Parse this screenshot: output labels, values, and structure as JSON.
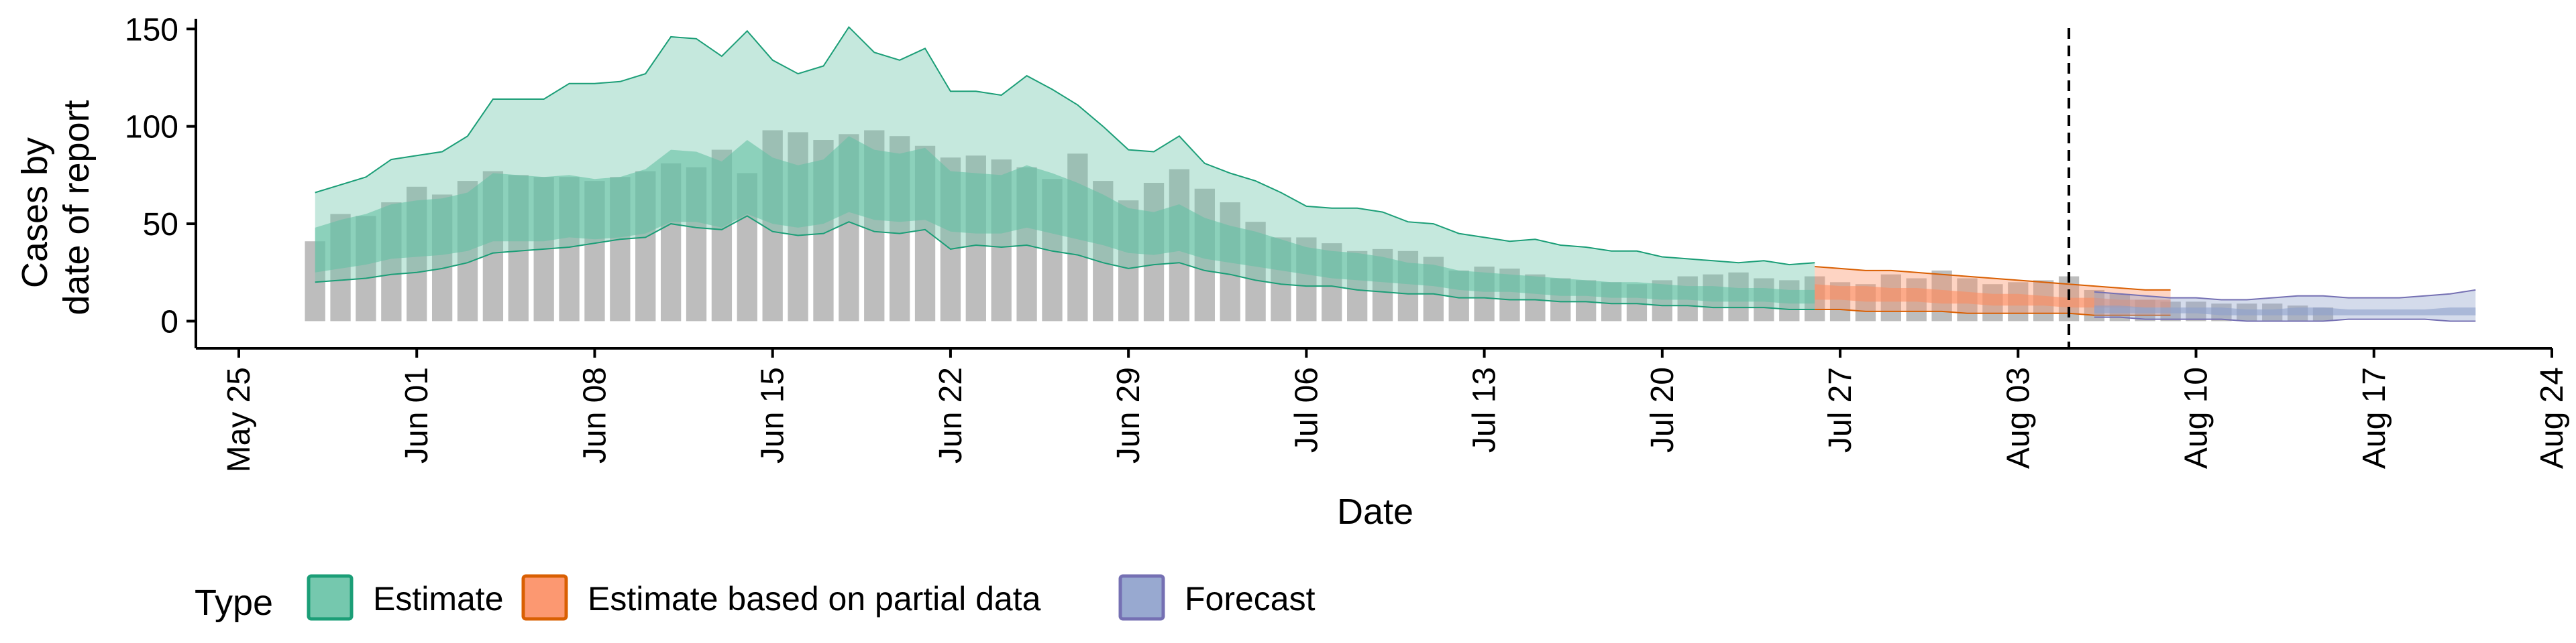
{
  "chart_data": {
    "type": "area",
    "xlabel": "Date",
    "ylabel_lines": [
      "Cases by",
      "date of report"
    ],
    "ylim": [
      -5,
      158
    ],
    "y_ticks": [
      0,
      50,
      100,
      150
    ],
    "x_start": "2020-05-25",
    "x_end": "2020-08-24",
    "x_ticks": [
      {
        "date": "2020-05-25",
        "label": "May 25"
      },
      {
        "date": "2020-06-01",
        "label": "Jun 01"
      },
      {
        "date": "2020-06-08",
        "label": "Jun 08"
      },
      {
        "date": "2020-06-15",
        "label": "Jun 15"
      },
      {
        "date": "2020-06-22",
        "label": "Jun 22"
      },
      {
        "date": "2020-06-29",
        "label": "Jun 29"
      },
      {
        "date": "2020-07-06",
        "label": "Jul 06"
      },
      {
        "date": "2020-07-13",
        "label": "Jul 13"
      },
      {
        "date": "2020-07-20",
        "label": "Jul 20"
      },
      {
        "date": "2020-07-27",
        "label": "Jul 27"
      },
      {
        "date": "2020-08-03",
        "label": "Aug 03"
      },
      {
        "date": "2020-08-10",
        "label": "Aug 10"
      },
      {
        "date": "2020-08-17",
        "label": "Aug 17"
      },
      {
        "date": "2020-08-24",
        "label": "Aug 24"
      }
    ],
    "vline_date": "2020-08-05",
    "reported_cases": {
      "start_date": "2020-05-28",
      "color": "#bdbdbd",
      "values": [
        41,
        55,
        54,
        61,
        69,
        65,
        72,
        77,
        75,
        74,
        74,
        72,
        74,
        77,
        81,
        79,
        88,
        76,
        98,
        97,
        93,
        96,
        98,
        95,
        90,
        84,
        85,
        83,
        79,
        73,
        86,
        72,
        62,
        71,
        78,
        68,
        61,
        51,
        43,
        43,
        40,
        36,
        37,
        36,
        33,
        26,
        28,
        27,
        24,
        22,
        21,
        20,
        19,
        21,
        23,
        24,
        25,
        22,
        21,
        23,
        20,
        19,
        24,
        22,
        26,
        22,
        19,
        20,
        21,
        23,
        16,
        14,
        11,
        10,
        10,
        9,
        9,
        9,
        8,
        7
      ]
    },
    "legend_title": "Type",
    "series": [
      {
        "name": "Estimate",
        "color": "#1b9e77",
        "fill": "#66c2a5",
        "start_date": "2020-05-28",
        "upper90": [
          66,
          70,
          74,
          83,
          85,
          87,
          95,
          114,
          114,
          114,
          122,
          122,
          123,
          127,
          146,
          145,
          136,
          149,
          134,
          127,
          131,
          151,
          138,
          134,
          140,
          118,
          118,
          116,
          126,
          119,
          111,
          100,
          88,
          87,
          95,
          81,
          76,
          72,
          66,
          59,
          58,
          58,
          56,
          51,
          50,
          45,
          43,
          41,
          42,
          39,
          38,
          36,
          36,
          33,
          32,
          31,
          30,
          31,
          29,
          30
        ],
        "upper50": [
          48,
          52,
          55,
          60,
          62,
          63,
          66,
          76,
          75,
          74,
          75,
          73,
          74,
          78,
          88,
          87,
          82,
          93,
          84,
          80,
          83,
          95,
          88,
          86,
          89,
          77,
          76,
          75,
          80,
          76,
          71,
          65,
          58,
          56,
          60,
          53,
          49,
          46,
          42,
          38,
          36,
          35,
          33,
          30,
          29,
          26,
          25,
          24,
          23,
          22,
          21,
          20,
          20,
          19,
          18,
          18,
          17,
          17,
          16,
          16
        ],
        "median": [
          33,
          36,
          38,
          42,
          44,
          45,
          48,
          54,
          54,
          54,
          56,
          55,
          56,
          59,
          66,
          66,
          63,
          71,
          65,
          62,
          64,
          73,
          68,
          66,
          68,
          60,
          59,
          58,
          62,
          59,
          55,
          51,
          46,
          44,
          47,
          42,
          39,
          37,
          34,
          31,
          29,
          28,
          27,
          25,
          24,
          22,
          21,
          20,
          19,
          18,
          17,
          17,
          16,
          15,
          15,
          14,
          14,
          14,
          13,
          13
        ],
        "lower50": [
          25,
          27,
          29,
          32,
          33,
          34,
          36,
          41,
          41,
          41,
          43,
          42,
          43,
          45,
          51,
          51,
          48,
          55,
          50,
          48,
          50,
          56,
          52,
          51,
          52,
          46,
          45,
          45,
          48,
          45,
          42,
          39,
          35,
          34,
          36,
          32,
          30,
          28,
          26,
          24,
          22,
          21,
          20,
          19,
          18,
          16,
          15,
          15,
          14,
          13,
          13,
          12,
          12,
          11,
          11,
          10,
          10,
          10,
          9,
          9
        ],
        "lower90": [
          20,
          21,
          22,
          24,
          25,
          27,
          30,
          35,
          36,
          37,
          38,
          40,
          42,
          43,
          50,
          48,
          47,
          54,
          46,
          44,
          45,
          51,
          46,
          45,
          47,
          37,
          39,
          38,
          39,
          36,
          34,
          30,
          27,
          29,
          30,
          26,
          24,
          21,
          19,
          18,
          18,
          16,
          15,
          14,
          14,
          12,
          12,
          11,
          11,
          10,
          10,
          9,
          9,
          8,
          8,
          7,
          7,
          7,
          6,
          6
        ]
      },
      {
        "name": "Estimate based on partial data",
        "color": "#d95f02",
        "fill": "#fc8d62",
        "start_date": "2020-07-26",
        "upper90": [
          28,
          27,
          26,
          26,
          25,
          24,
          23,
          22,
          21,
          20,
          19,
          18,
          17,
          16,
          16
        ],
        "upper50": [
          19,
          18,
          18,
          17,
          17,
          16,
          15,
          14,
          14,
          13,
          12,
          12,
          11,
          11,
          11
        ],
        "median": [
          15,
          14,
          14,
          13,
          13,
          12,
          12,
          11,
          11,
          10,
          10,
          9,
          9,
          9,
          9
        ],
        "lower50": [
          11,
          11,
          10,
          10,
          10,
          9,
          9,
          8,
          8,
          8,
          7,
          7,
          7,
          7,
          7
        ],
        "lower90": [
          6,
          6,
          5,
          5,
          5,
          5,
          4,
          4,
          4,
          4,
          4,
          3,
          3,
          3,
          3
        ]
      },
      {
        "name": "Forecast",
        "color": "#7570b3",
        "fill": "#8da0cb",
        "start_date": "2020-08-06",
        "upper90": [
          15,
          14,
          13,
          12,
          12,
          11,
          11,
          12,
          13,
          13,
          12,
          12,
          12,
          13,
          14,
          16
        ],
        "upper50": [
          8,
          8,
          7,
          7,
          7,
          7,
          6,
          6,
          7,
          7,
          6,
          6,
          6,
          6,
          7,
          7
        ],
        "median": [
          6,
          6,
          5,
          5,
          5,
          5,
          5,
          5,
          5,
          5,
          5,
          4,
          4,
          4,
          4,
          4
        ],
        "lower50": [
          4,
          4,
          4,
          4,
          4,
          3,
          3,
          3,
          3,
          3,
          3,
          3,
          3,
          3,
          3,
          3
        ],
        "lower90": [
          2,
          2,
          1,
          1,
          1,
          1,
          0,
          0,
          0,
          0,
          1,
          1,
          1,
          1,
          0,
          0
        ]
      }
    ]
  }
}
